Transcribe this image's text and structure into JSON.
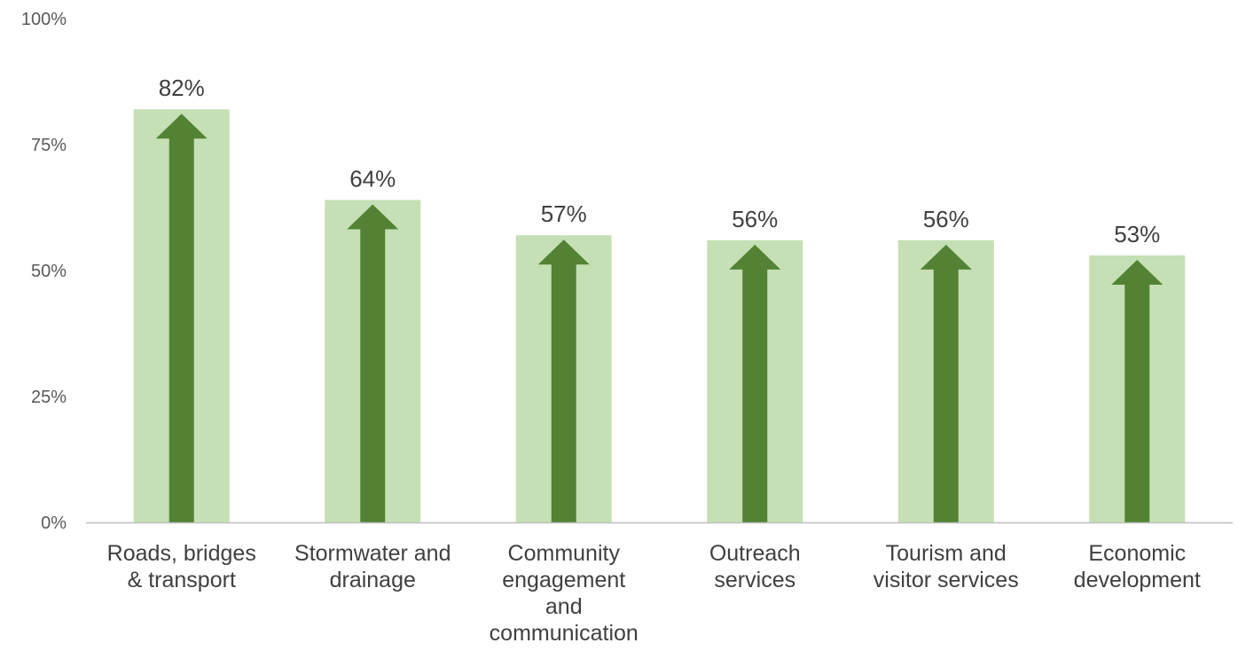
{
  "chart_data": {
    "type": "bar",
    "categories": [
      "Roads, bridges & transport",
      "Stormwater and drainage",
      "Community engagement and communication",
      "Outreach services",
      "Tourism and visitor services",
      "Economic development"
    ],
    "category_lines": [
      [
        "Roads, bridges",
        "& transport"
      ],
      [
        "Stormwater and",
        "drainage"
      ],
      [
        "Community",
        "engagement",
        "and",
        "communication"
      ],
      [
        "Outreach",
        "services"
      ],
      [
        "Tourism and",
        "visitor services"
      ],
      [
        "Economic",
        "development"
      ]
    ],
    "values": [
      82,
      64,
      57,
      56,
      56,
      53
    ],
    "data_labels": [
      "82%",
      "64%",
      "57%",
      "56%",
      "56%",
      "53%"
    ],
    "ylim": [
      0,
      100
    ],
    "yticks": [
      0,
      25,
      50,
      75,
      100
    ],
    "ytick_labels": [
      "0%",
      "25%",
      "50%",
      "75%",
      "100%"
    ],
    "title": "",
    "xlabel": "",
    "ylabel": "",
    "grid": false,
    "legend": "none",
    "colors": {
      "bar": "#c5e0b4",
      "arrow": "#548235",
      "axis": "#bfbfbf"
    }
  }
}
